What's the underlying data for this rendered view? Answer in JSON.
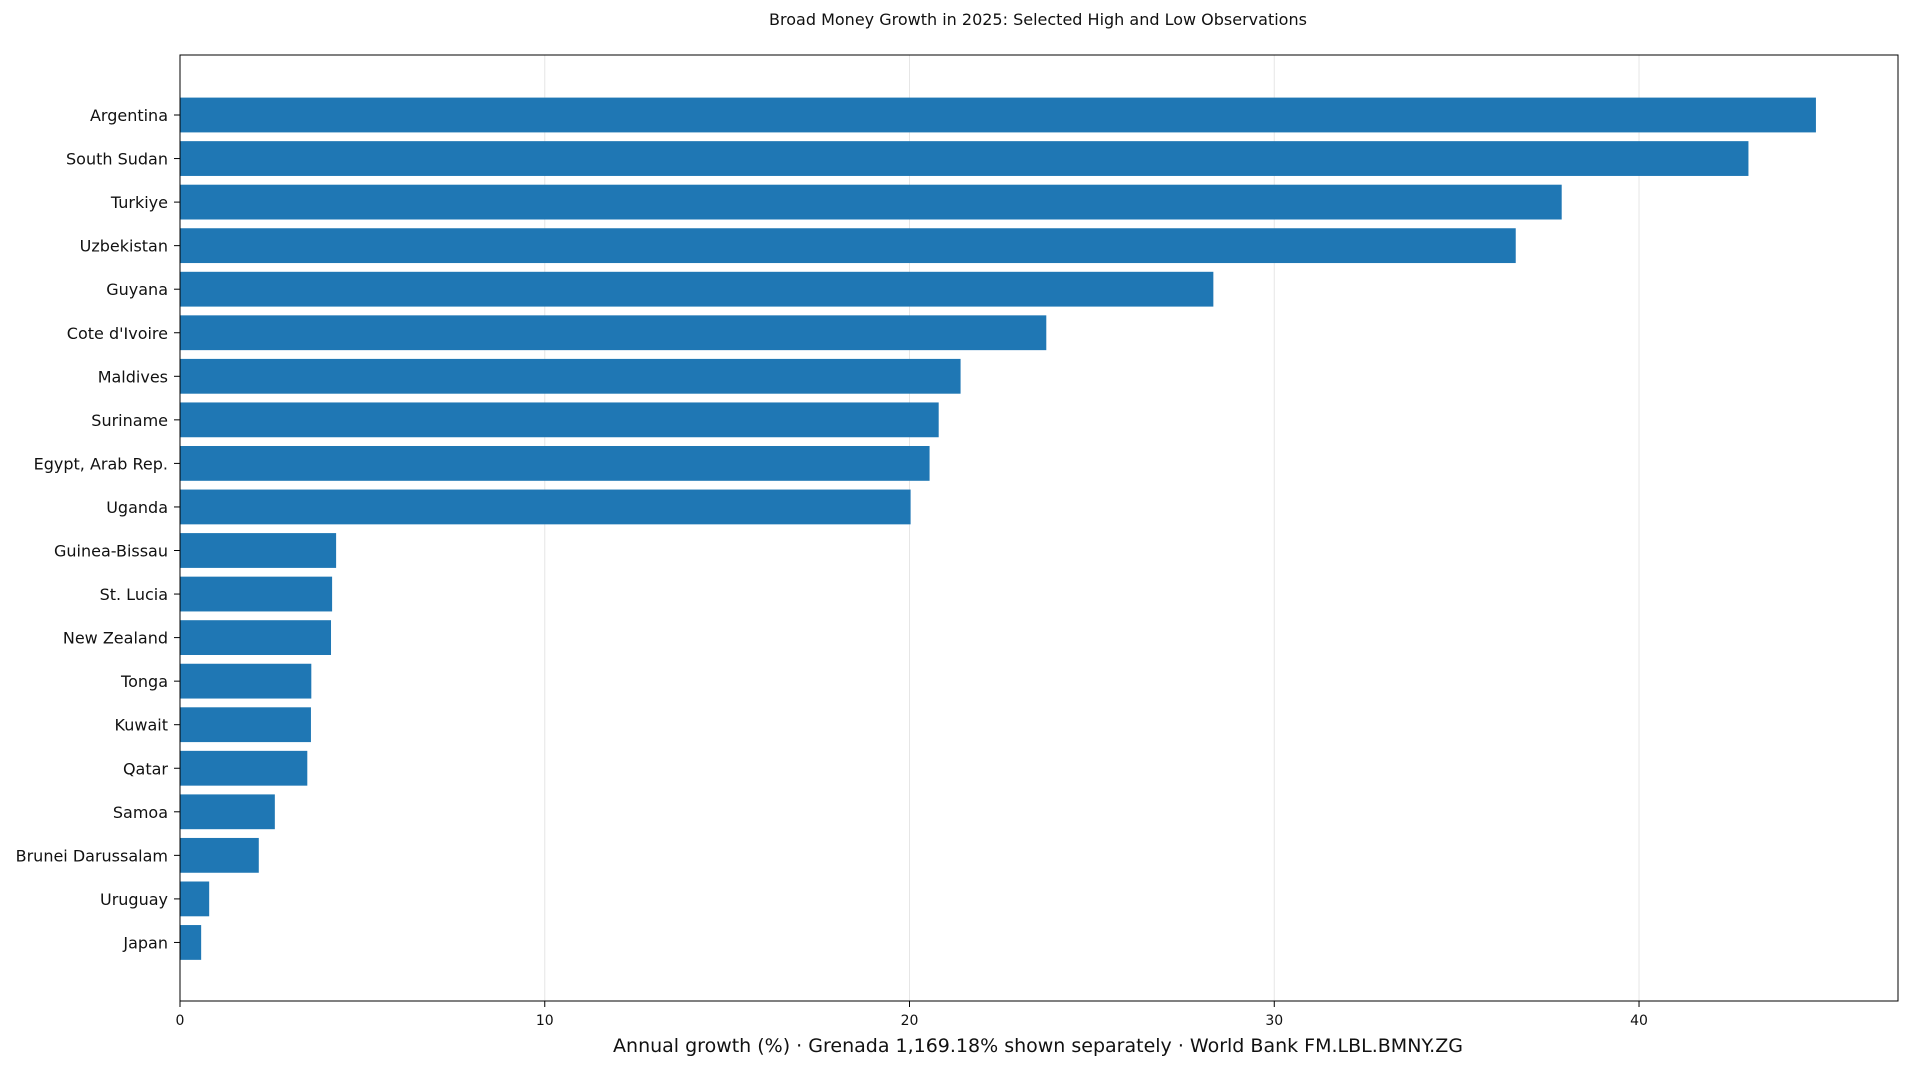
{
  "chart_data": {
    "type": "bar",
    "orientation": "horizontal",
    "title": "Broad Money Growth in 2025: Selected High and Low Observations",
    "xlabel": "Annual growth (%) · Grenada 1,169.18% shown separately · World Bank FM.LBL.BMNY.ZG",
    "ylabel": "",
    "xlim": [
      0,
      47.1
    ],
    "xticks": [
      0,
      10,
      20,
      30,
      40
    ],
    "grid": "vertical",
    "bar_color": "#1f77b4",
    "categories": [
      "Argentina",
      "South Sudan",
      "Turkiye",
      "Uzbekistan",
      "Guyana",
      "Cote d'Ivoire",
      "Maldives",
      "Suriname",
      "Egypt, Arab Rep.",
      "Uganda",
      "Guinea-Bissau",
      "St. Lucia",
      "New Zealand",
      "Tonga",
      "Kuwait",
      "Qatar",
      "Samoa",
      "Brunei Darussalam",
      "Uruguay",
      "Japan"
    ],
    "values": [
      44.85,
      43.0,
      37.88,
      36.62,
      28.33,
      23.75,
      21.4,
      20.8,
      20.55,
      20.03,
      4.28,
      4.17,
      4.14,
      3.6,
      3.59,
      3.49,
      2.6,
      2.16,
      0.8,
      0.58
    ]
  }
}
